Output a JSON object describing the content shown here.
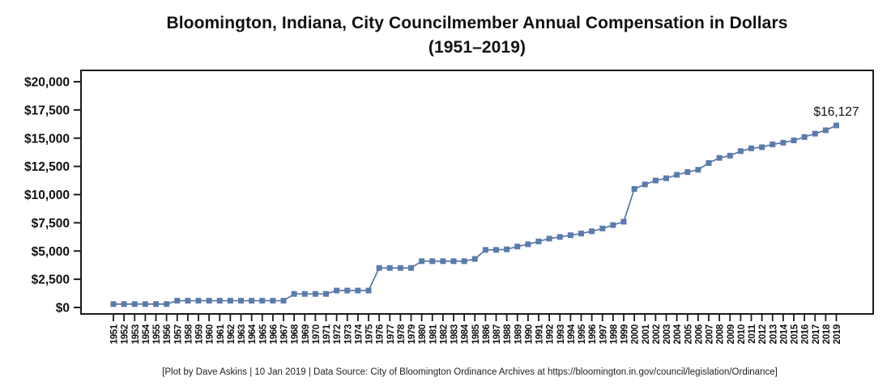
{
  "title": {
    "line1": "Bloomington, Indiana, City Councilmember Annual Compensation in Dollars",
    "line2": "(1951–2019)"
  },
  "caption": "[Plot by Dave Askins | 10 Jan 2019 | Data Source: City of Bloomington Ordinance Archives at https://bloomington.in.gov/council/legislation/Ordinance]",
  "chart_data": {
    "type": "line",
    "title": "Bloomington, Indiana, City Councilmember Annual Compensation in Dollars",
    "subtitle": "(1951–2019)",
    "marker": "square",
    "grid": false,
    "legend": null,
    "xlabel": "",
    "ylabel": "",
    "ylim": [
      0,
      20000
    ],
    "y_tick_values": [
      0,
      2500,
      5000,
      7500,
      10000,
      12500,
      15000,
      17500,
      20000
    ],
    "y_tick_labels": [
      "$0",
      "$2,500",
      "$5,000",
      "$7,500",
      "$10,000",
      "$12,500",
      "$15,000",
      "$17,500",
      "$20,000"
    ],
    "x": [
      1951,
      1952,
      1953,
      1954,
      1955,
      1956,
      1957,
      1958,
      1959,
      1960,
      1961,
      1962,
      1963,
      1964,
      1965,
      1966,
      1967,
      1968,
      1969,
      1970,
      1971,
      1972,
      1973,
      1974,
      1975,
      1976,
      1977,
      1978,
      1979,
      1980,
      1981,
      1982,
      1983,
      1984,
      1985,
      1986,
      1987,
      1988,
      1989,
      1990,
      1991,
      1992,
      1993,
      1994,
      1995,
      1996,
      1997,
      1998,
      1999,
      2000,
      2001,
      2002,
      2003,
      2004,
      2005,
      2006,
      2007,
      2008,
      2009,
      2010,
      2011,
      2012,
      2013,
      2014,
      2015,
      2016,
      2017,
      2018,
      2019
    ],
    "values": [
      300,
      300,
      300,
      300,
      300,
      300,
      600,
      600,
      600,
      600,
      600,
      600,
      600,
      600,
      600,
      600,
      600,
      1200,
      1200,
      1200,
      1200,
      1500,
      1500,
      1500,
      1500,
      3500,
      3500,
      3500,
      3500,
      4100,
      4100,
      4100,
      4100,
      4100,
      4300,
      5100,
      5100,
      5150,
      5400,
      5600,
      5850,
      6100,
      6250,
      6400,
      6550,
      6750,
      7000,
      7300,
      7600,
      10500,
      10900,
      11250,
      11450,
      11750,
      12000,
      12200,
      12800,
      13250,
      13450,
      13850,
      14100,
      14200,
      14450,
      14600,
      14800,
      15100,
      15400,
      15700,
      16127
    ],
    "annotation": {
      "text": "$16,127",
      "year": 2019,
      "value": 16127
    },
    "colors": {
      "series": "#5b7bad",
      "line": "#4f6f9e",
      "axis": "#1c1c1c",
      "text": "#111111"
    }
  }
}
